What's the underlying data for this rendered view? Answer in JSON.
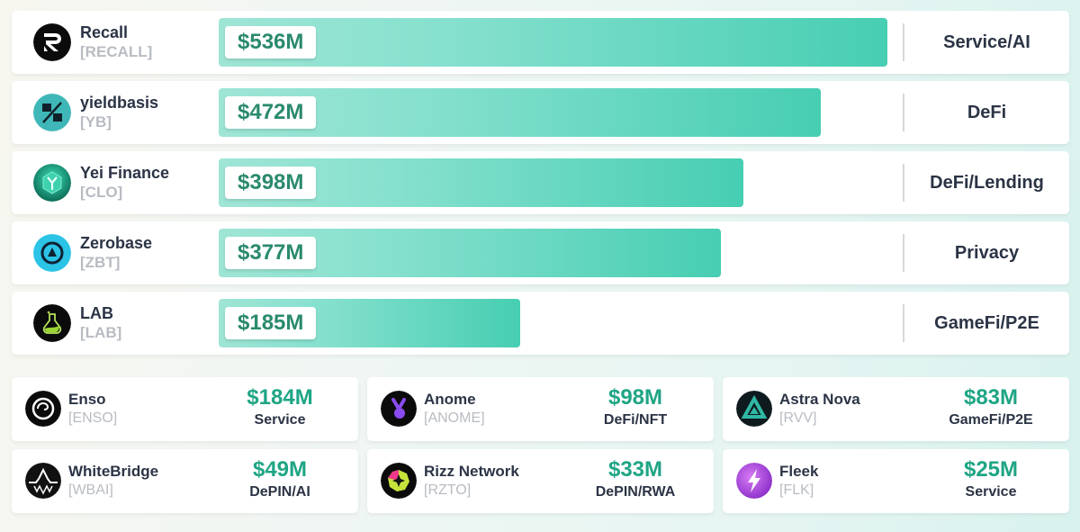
{
  "chart_data": {
    "type": "bar",
    "orientation": "horizontal",
    "title": "",
    "xlabel": "",
    "ylabel": "",
    "xlim": [
      0,
      536
    ],
    "unit": "$M",
    "categories": [
      "Recall",
      "yieldbasis",
      "Yei Finance",
      "Zerobase",
      "LAB"
    ],
    "values": [
      536,
      472,
      398,
      377,
      185
    ],
    "bars": [
      {
        "name": "Recall",
        "ticker": "[RECALL]",
        "value": 536,
        "label": "$536M",
        "category": "Service/AI",
        "icon": "recall-logo-icon"
      },
      {
        "name": "yieldbasis",
        "ticker": "[YB]",
        "value": 472,
        "label": "$472M",
        "category": "DeFi",
        "icon": "yieldbasis-logo-icon"
      },
      {
        "name": "Yei Finance",
        "ticker": "[CLO]",
        "value": 398,
        "label": "$398M",
        "category": "DeFi/Lending",
        "icon": "yei-finance-logo-icon"
      },
      {
        "name": "Zerobase",
        "ticker": "[ZBT]",
        "value": 377,
        "label": "$377M",
        "category": "Privacy",
        "icon": "zerobase-logo-icon"
      },
      {
        "name": "LAB",
        "ticker": "[LAB]",
        "value": 185,
        "label": "$185M",
        "category": "GameFi/P2E",
        "icon": "lab-logo-icon"
      }
    ],
    "cards": [
      {
        "name": "Enso",
        "ticker": "[ENSO]",
        "value": 184,
        "label": "$184M",
        "category": "Service",
        "icon": "enso-logo-icon"
      },
      {
        "name": "Anome",
        "ticker": "[ANOME]",
        "value": 98,
        "label": "$98M",
        "category": "DeFi/NFT",
        "icon": "anome-logo-icon"
      },
      {
        "name": "Astra Nova",
        "ticker": "[RVV]",
        "value": 83,
        "label": "$83M",
        "category": "GameFi/P2E",
        "icon": "astra-nova-logo-icon"
      },
      {
        "name": "WhiteBridge",
        "ticker": "[WBAI]",
        "value": 49,
        "label": "$49M",
        "category": "DePIN/AI",
        "icon": "whitebridge-logo-icon"
      },
      {
        "name": "Rizz Network",
        "ticker": "[RZTO]",
        "value": 33,
        "label": "$33M",
        "category": "DePIN/RWA",
        "icon": "rizz-network-logo-icon"
      },
      {
        "name": "Fleek",
        "ticker": "[FLK]",
        "value": 25,
        "label": "$25M",
        "category": "Service",
        "icon": "fleek-logo-icon"
      }
    ]
  },
  "colors": {
    "bar_start": "#9fe5d6",
    "bar_end": "#47ceb2",
    "value_text": "#2a8a6e",
    "card_value_text": "#1fa585",
    "name_text": "#2b3445",
    "ticker_text": "#b8bcc2"
  }
}
